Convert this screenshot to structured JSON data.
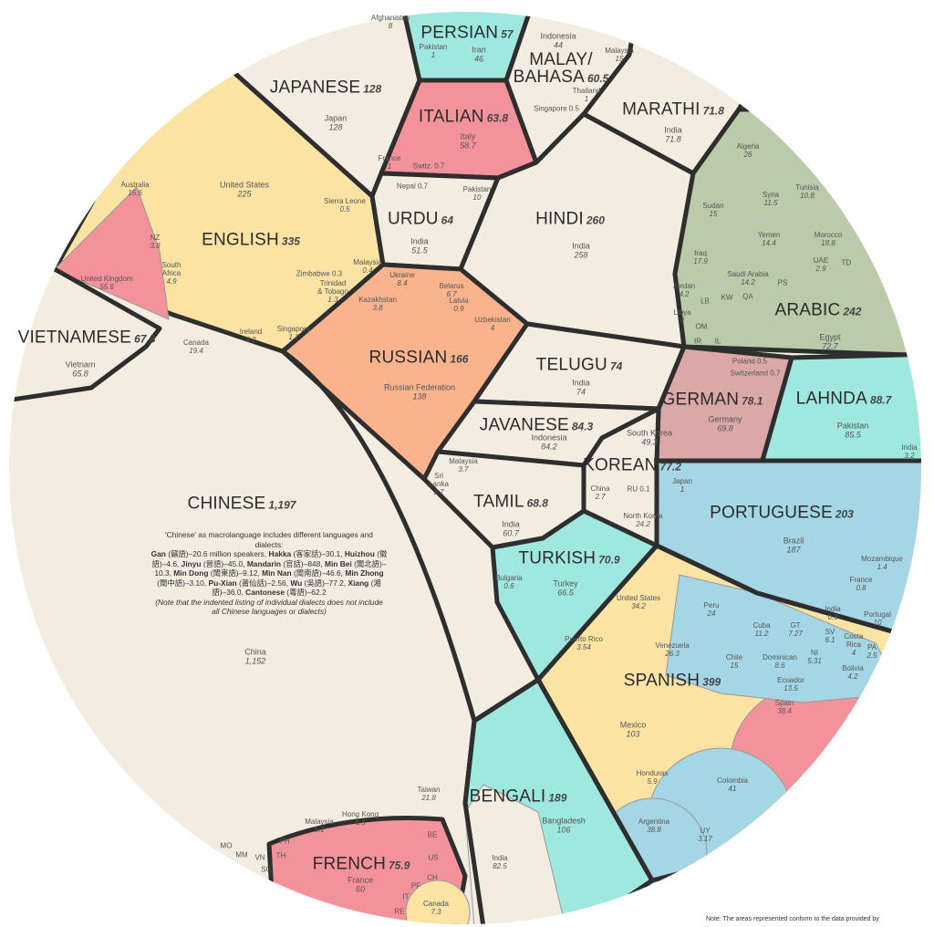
{
  "chart_data": {
    "type": "treemap",
    "subtype": "voronoi-circle",
    "unit": "million speakers",
    "colors": {
      "background": "#f3ece0",
      "border": "#2e2e2e",
      "yellow": "#fbe3a4",
      "pink": "#f4929c",
      "cyan": "#9fe8e0",
      "green": "#b9cba8",
      "orange": "#f9b48e",
      "blue": "#a5d6e6",
      "rose": "#dba8a8",
      "grey": "#c5c8cc"
    },
    "languages": [
      {
        "name": "CHINESE",
        "total": "1,197",
        "countries": [
          {
            "name": "China",
            "value": "1,152"
          },
          {
            "name": "Taiwan",
            "value": "21.8"
          },
          {
            "name": "Hong Kong",
            "value": "6.5"
          },
          {
            "name": "Malaysia",
            "value": "5.1"
          },
          {
            "name": "PH",
            "value": ""
          },
          {
            "name": "TH",
            "value": ""
          },
          {
            "name": "VN",
            "value": ""
          },
          {
            "name": "SG",
            "value": ""
          },
          {
            "name": "MM",
            "value": ""
          },
          {
            "name": "MO",
            "value": ""
          }
        ]
      },
      {
        "name": "ENGLISH",
        "total": "335",
        "countries": [
          {
            "name": "United States",
            "value": "225"
          },
          {
            "name": "United Kingdom",
            "value": "55.6"
          },
          {
            "name": "Canada",
            "value": "19.4"
          },
          {
            "name": "Australia",
            "value": "15.6"
          },
          {
            "name": "NZ",
            "value": "3.8"
          },
          {
            "name": "South\nAfrica",
            "value": "4.9"
          },
          {
            "name": "Ireland",
            "value": "4.2"
          },
          {
            "name": "Singapore",
            "value": "1.1"
          },
          {
            "name": "Sierra Leone",
            "value": "0.5"
          },
          {
            "name": "Malaysia",
            "value": "0.4"
          },
          {
            "name": "Zimbabwe 0.3",
            "value": ""
          },
          {
            "name": "Trinidad\n& Tobago",
            "value": "1.3"
          }
        ]
      },
      {
        "name": "SPANISH",
        "total": "399",
        "countries": [
          {
            "name": "Mexico",
            "value": "103"
          },
          {
            "name": "United States",
            "value": "34.2"
          },
          {
            "name": "Colombia",
            "value": "41"
          },
          {
            "name": "Argentina",
            "value": "38.8"
          },
          {
            "name": "Spain",
            "value": "38.4"
          },
          {
            "name": "Venezuela",
            "value": "26.3"
          },
          {
            "name": "Peru",
            "value": "24"
          },
          {
            "name": "Chile",
            "value": "15"
          },
          {
            "name": "Ecuador",
            "value": "13.5"
          },
          {
            "name": "Cuba",
            "value": "11.2"
          },
          {
            "name": "Dominican",
            "value": "8.6"
          },
          {
            "name": "GT",
            "value": "7.27"
          },
          {
            "name": "NI",
            "value": "5.31"
          },
          {
            "name": "SV",
            "value": "6.1"
          },
          {
            "name": "Bolivia",
            "value": "4.2"
          },
          {
            "name": "Honduras",
            "value": "5.9"
          },
          {
            "name": "Puerto Rico",
            "value": "3.54"
          },
          {
            "name": "UY",
            "value": "3.17"
          },
          {
            "name": "Costa\nRica",
            "value": "4"
          },
          {
            "name": "PA",
            "value": "2.5"
          }
        ]
      },
      {
        "name": "HINDI",
        "total": "260",
        "countries": [
          {
            "name": "India",
            "value": "258"
          }
        ]
      },
      {
        "name": "ARABIC",
        "total": "242",
        "countries": [
          {
            "name": "Egypt",
            "value": "72.7"
          },
          {
            "name": "Algeria",
            "value": "26"
          },
          {
            "name": "Iraq",
            "value": "17.9"
          },
          {
            "name": "Sudan",
            "value": "15"
          },
          {
            "name": "Yemen",
            "value": "14.4"
          },
          {
            "name": "Saudi Arabia",
            "value": "14.2"
          },
          {
            "name": "Morocco",
            "value": "18.8"
          },
          {
            "name": "Syria",
            "value": "11.5"
          },
          {
            "name": "Tunisia",
            "value": "10.8"
          },
          {
            "name": "Jordan",
            "value": "4.2"
          },
          {
            "name": "Libya",
            "value": "4"
          },
          {
            "name": "UAE",
            "value": "2.9"
          },
          {
            "name": "PS",
            "value": ""
          },
          {
            "name": "LB",
            "value": ""
          },
          {
            "name": "KW",
            "value": ""
          },
          {
            "name": "QA",
            "value": ""
          },
          {
            "name": "OM",
            "value": ""
          },
          {
            "name": "IR",
            "value": ""
          },
          {
            "name": "IL",
            "value": ""
          },
          {
            "name": "TD",
            "value": ""
          }
        ]
      },
      {
        "name": "BENGALI",
        "total": "189",
        "countries": [
          {
            "name": "Bangladesh",
            "value": "106"
          },
          {
            "name": "India",
            "value": "82.5"
          }
        ]
      },
      {
        "name": "PORTUGUESE",
        "total": "203",
        "countries": [
          {
            "name": "Brazil",
            "value": "187"
          },
          {
            "name": "Portugal",
            "value": "10"
          },
          {
            "name": "Mozambique",
            "value": "1.4"
          },
          {
            "name": "France",
            "value": "0.8"
          },
          {
            "name": "India",
            "value": "0.3"
          }
        ]
      },
      {
        "name": "RUSSIAN",
        "total": "166",
        "countries": [
          {
            "name": "Russian Federation",
            "value": "138"
          },
          {
            "name": "Ukraine",
            "value": "8.4"
          },
          {
            "name": "Belarus",
            "value": "6.7"
          },
          {
            "name": "Kazakhstan",
            "value": "3.8"
          },
          {
            "name": "Uzbekistan",
            "value": "4"
          },
          {
            "name": "Latvia",
            "value": "0.9"
          }
        ]
      },
      {
        "name": "JAPANESE",
        "total": "128",
        "countries": [
          {
            "name": "Japan",
            "value": "128"
          }
        ]
      },
      {
        "name": "LAHNDA",
        "total": "88.7",
        "countries": [
          {
            "name": "Pakistan",
            "value": "85.5"
          },
          {
            "name": "India",
            "value": "3.2"
          }
        ]
      },
      {
        "name": "JAVANESE",
        "total": "84.3",
        "countries": [
          {
            "name": "Indonesia",
            "value": "84.2"
          }
        ]
      },
      {
        "name": "GERMAN",
        "total": "78.1",
        "countries": [
          {
            "name": "Germany",
            "value": "69.8"
          },
          {
            "name": "Poland 0.5",
            "value": ""
          },
          {
            "name": "Switzerland 0.7",
            "value": ""
          }
        ]
      },
      {
        "name": "KOREAN",
        "total": "77.2",
        "countries": [
          {
            "name": "South Korea",
            "value": "49.3"
          },
          {
            "name": "North Korea",
            "value": "24.2"
          },
          {
            "name": "China",
            "value": "2.7"
          },
          {
            "name": "Japan",
            "value": "1"
          },
          {
            "name": "RU 0.1",
            "value": ""
          }
        ]
      },
      {
        "name": "FRENCH",
        "total": "75.9",
        "countries": [
          {
            "name": "France",
            "value": "60"
          },
          {
            "name": "Canada",
            "value": "7.3"
          },
          {
            "name": "BE",
            "value": ""
          },
          {
            "name": "US",
            "value": ""
          },
          {
            "name": "CH",
            "value": ""
          },
          {
            "name": "PF",
            "value": ""
          },
          {
            "name": "IT",
            "value": ""
          },
          {
            "name": "RE",
            "value": ""
          }
        ]
      },
      {
        "name": "TELUGU",
        "total": "74",
        "countries": [
          {
            "name": "India",
            "value": "74"
          }
        ]
      },
      {
        "name": "MARATHI",
        "total": "71.8",
        "countries": [
          {
            "name": "India",
            "value": "71.8"
          }
        ]
      },
      {
        "name": "TURKISH",
        "total": "70.9",
        "countries": [
          {
            "name": "Turkey",
            "value": "66.5"
          },
          {
            "name": "Bulgaria",
            "value": "0.6"
          }
        ]
      },
      {
        "name": "TAMIL",
        "total": "68.8",
        "countries": [
          {
            "name": "India",
            "value": "60.7"
          },
          {
            "name": "Sri\nLanka",
            "value": "3.7"
          },
          {
            "name": "Malaysia",
            "value": "3.7"
          }
        ]
      },
      {
        "name": "VIETNAMESE",
        "total": "67.8",
        "countries": [
          {
            "name": "Vietnam",
            "value": "65.8"
          }
        ]
      },
      {
        "name": "URDU",
        "total": "64",
        "countries": [
          {
            "name": "India",
            "value": "51.5"
          },
          {
            "name": "Pakistan",
            "value": "10"
          },
          {
            "name": "Nepal 0.7",
            "value": ""
          }
        ]
      },
      {
        "name": "ITALIAN",
        "total": "63.8",
        "countries": [
          {
            "name": "Italy",
            "value": "58.7"
          },
          {
            "name": "France",
            "value": "1"
          },
          {
            "name": "Switz. 0.7",
            "value": ""
          }
        ]
      },
      {
        "name": "MALAY/\nBAHASA",
        "total": "60.5",
        "countries": [
          {
            "name": "Indonesia",
            "value": "44"
          },
          {
            "name": "Malaysia",
            "value": "15"
          },
          {
            "name": "Thailand",
            "value": "1"
          },
          {
            "name": "Singapore 0.5",
            "value": ""
          }
        ]
      },
      {
        "name": "PERSIAN",
        "total": "57",
        "countries": [
          {
            "name": "Iran",
            "value": "46"
          },
          {
            "name": "Afghanistan",
            "value": "8"
          },
          {
            "name": "Pakistan",
            "value": "1"
          }
        ]
      }
    ],
    "chinese_note": {
      "intro": "'Chinese' as macrolanguage includes different languages and dialects:",
      "dialects": [
        {
          "name": "Gan",
          "chars": "(贛語)",
          "value": "20.6 million speakers"
        },
        {
          "name": "Hakka",
          "chars": "(客家話)",
          "value": "30.1"
        },
        {
          "name": "Huizhou",
          "chars": "(徽語)",
          "value": "4.6"
        },
        {
          "name": "Jinyu",
          "chars": "(晉語)",
          "value": "45.0"
        },
        {
          "name": "Mandarin",
          "chars": "(官話)",
          "value": "848"
        },
        {
          "name": "Min Bei",
          "chars": "(閩北語)",
          "value": "10.3"
        },
        {
          "name": "Min Dong",
          "chars": "(閩東語)",
          "value": "9.12"
        },
        {
          "name": "Min Nan",
          "chars": "(閩南語)",
          "value": "46.6"
        },
        {
          "name": "Min Zhong",
          "chars": "(閩中語)",
          "value": "3.10"
        },
        {
          "name": "Pu-Xian",
          "chars": "(莆仙話)",
          "value": "2.56"
        },
        {
          "name": "Wu",
          "chars": "(吳語)",
          "value": "77.2"
        },
        {
          "name": "Xiang",
          "chars": "(湘語)",
          "value": "36.0"
        },
        {
          "name": "Cantonese",
          "chars": "(粵語)",
          "value": "62.2"
        }
      ],
      "footnote": "(Note that the indented listing of individual dialects does not include all Chinese languages or dialects)"
    }
  },
  "note": "Note: The areas represented conform to the data provided by"
}
